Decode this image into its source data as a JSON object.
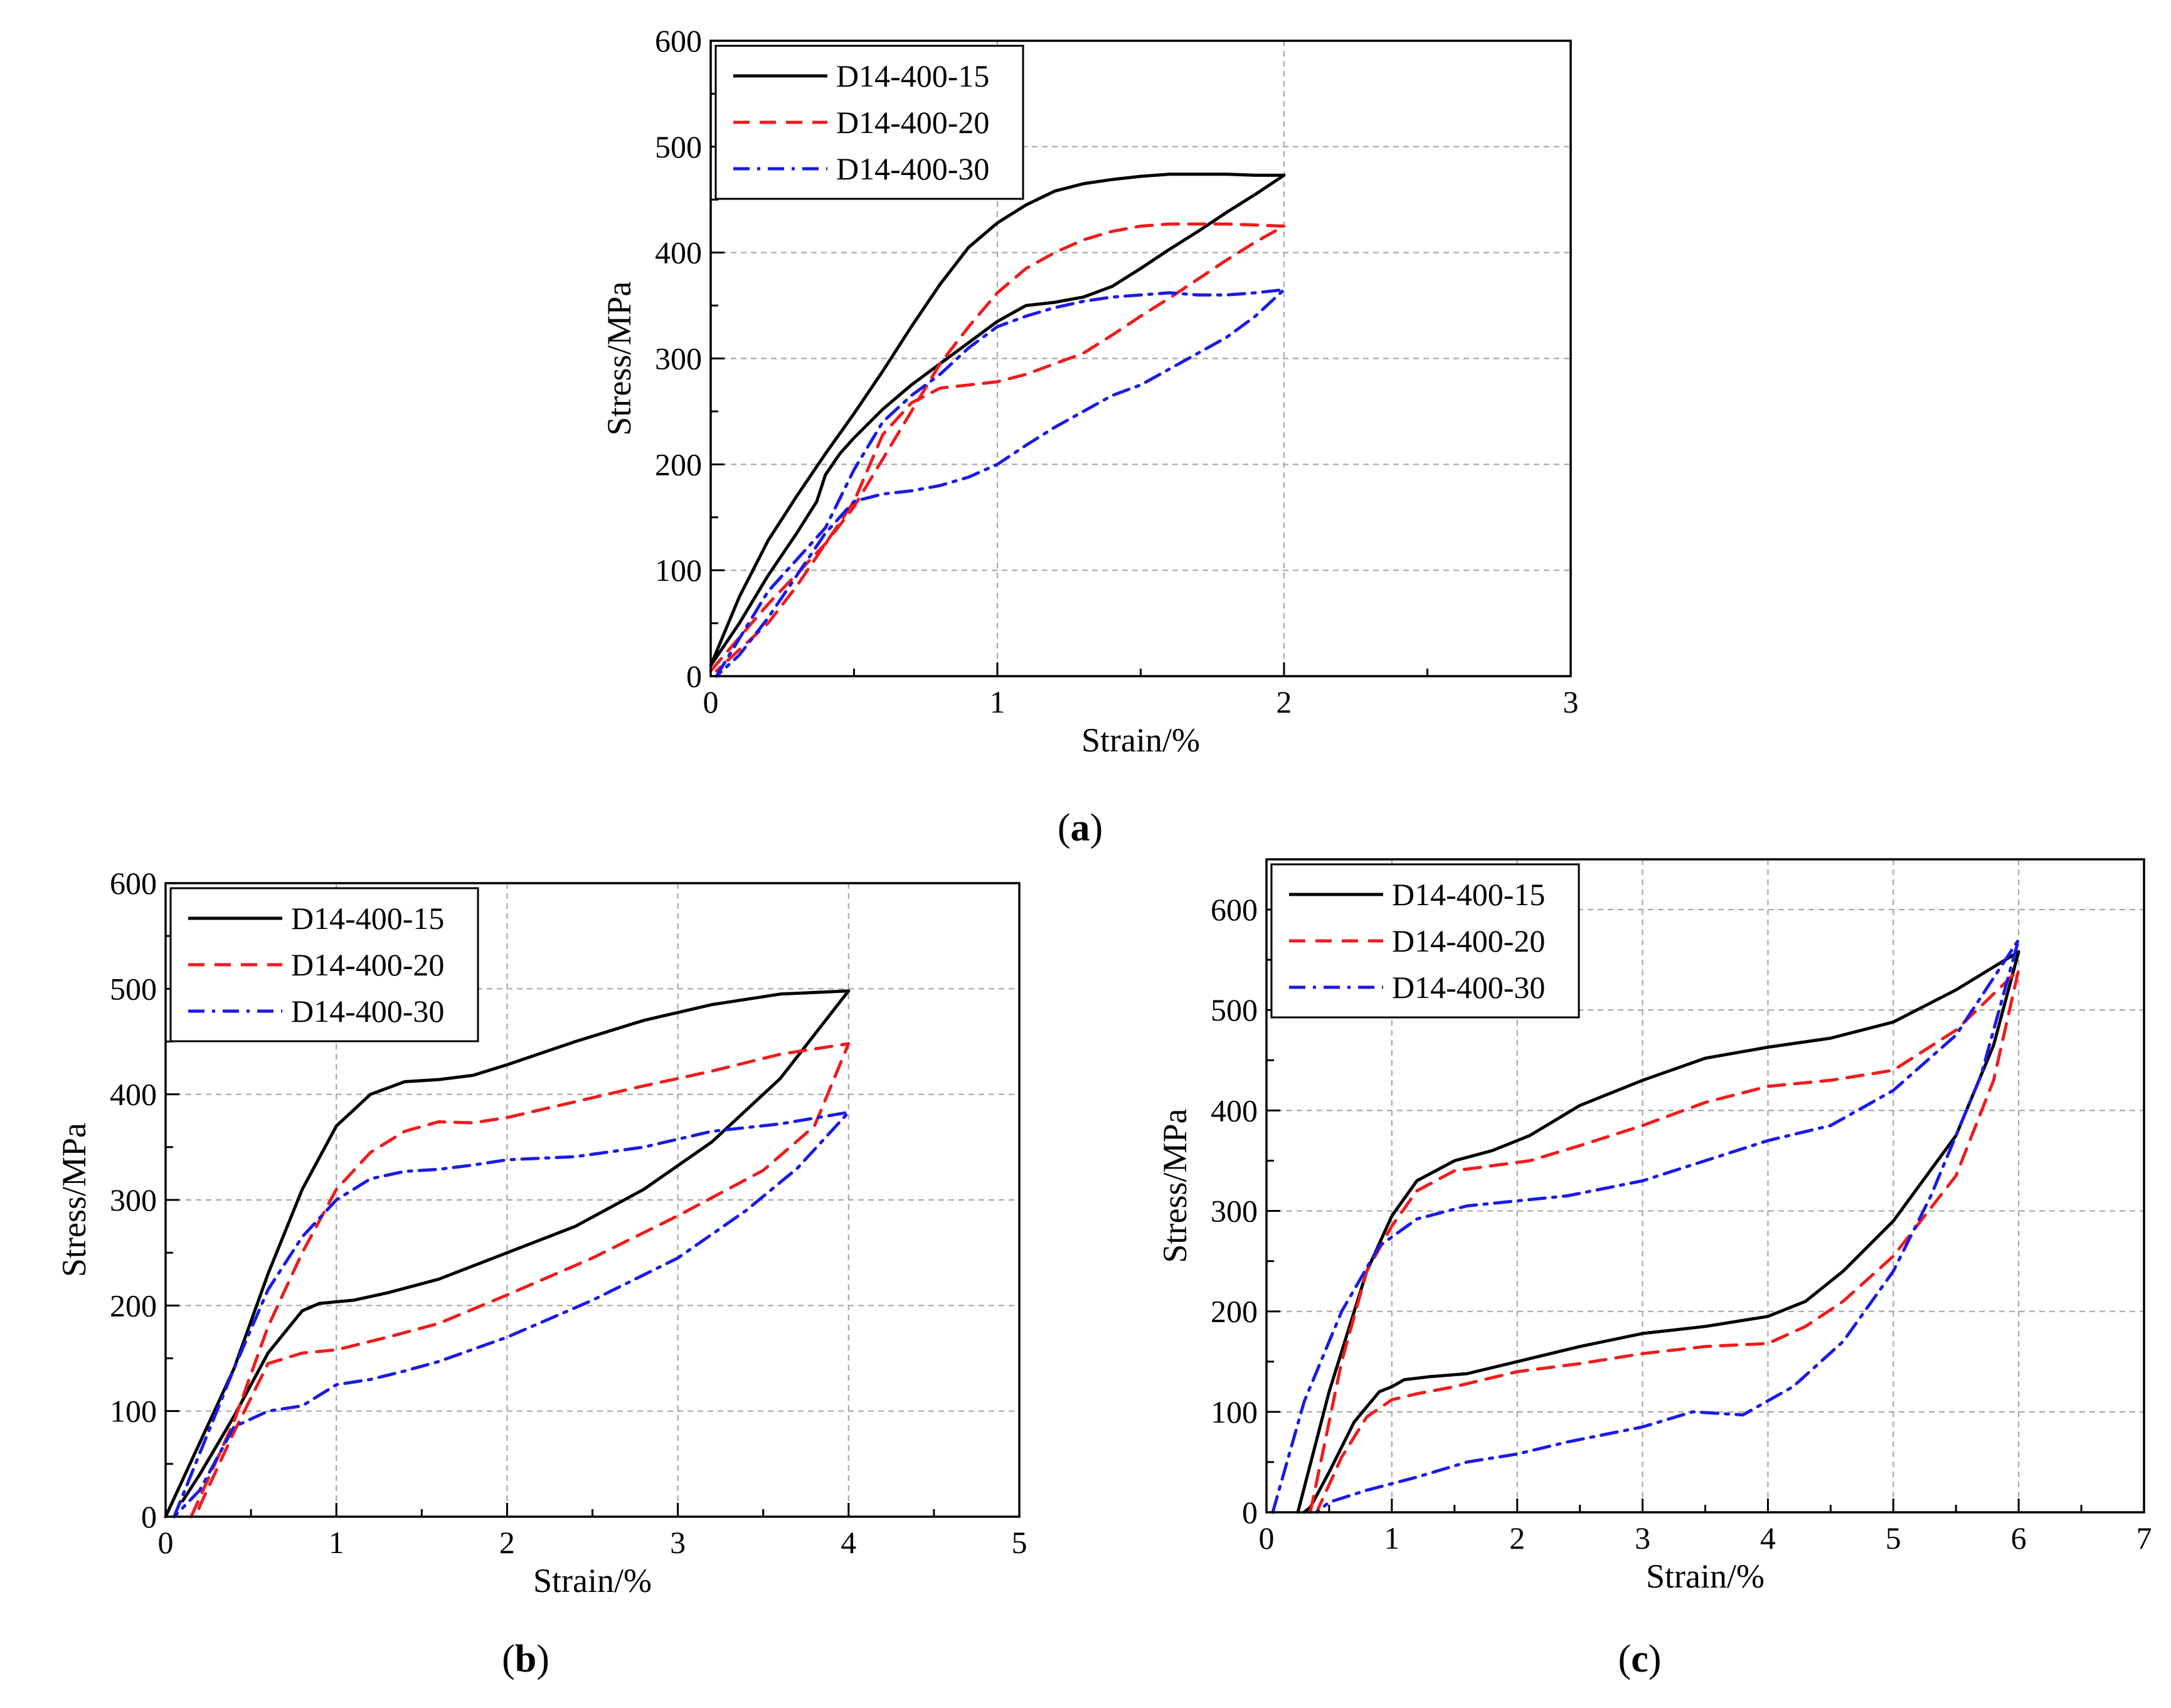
{
  "panels": [
    {
      "caption_letter": "a"
    },
    {
      "caption_letter": "b"
    },
    {
      "caption_letter": "c"
    }
  ],
  "colors": {
    "D14-400-15": "#000000",
    "D14-400-20": "#ee1c1c",
    "D14-400-30": "#1a1ae6"
  },
  "chart_data": [
    {
      "type": "line",
      "xlabel": "Strain/%",
      "ylabel": "Stress/MPa",
      "xlim": [
        0,
        3
      ],
      "ylim": [
        0,
        600
      ],
      "xticks": [
        0,
        1,
        2,
        3
      ],
      "yticks": [
        0,
        100,
        200,
        300,
        400,
        500,
        600
      ],
      "grid": true,
      "legend": "top-left",
      "series": [
        {
          "name": "D14-400-15",
          "style": "solid",
          "x": [
            0,
            0.1,
            0.2,
            0.3,
            0.4,
            0.5,
            0.6,
            0.7,
            0.8,
            0.9,
            1.0,
            1.1,
            1.2,
            1.3,
            1.4,
            1.5,
            1.6,
            1.7,
            1.8,
            1.9,
            2.0,
            1.9,
            1.8,
            1.7,
            1.6,
            1.5,
            1.4,
            1.3,
            1.2,
            1.1,
            1.0,
            0.9,
            0.8,
            0.7,
            0.6,
            0.5,
            0.45,
            0.4,
            0.37,
            0.3,
            0.2,
            0.1,
            0
          ],
          "y": [
            10,
            75,
            128,
            170,
            210,
            248,
            288,
            330,
            370,
            405,
            428,
            445,
            458,
            465,
            469,
            472,
            474,
            474,
            474,
            473,
            473,
            455,
            438,
            420,
            403,
            385,
            368,
            358,
            353,
            350,
            335,
            315,
            295,
            275,
            252,
            225,
            210,
            190,
            165,
            135,
            95,
            50,
            10
          ]
        },
        {
          "name": "D14-400-20",
          "style": "dashed",
          "x": [
            0,
            0.2,
            0.4,
            0.5,
            0.6,
            0.7,
            0.8,
            0.9,
            1.0,
            1.1,
            1.2,
            1.3,
            1.4,
            1.5,
            1.6,
            1.7,
            1.8,
            1.9,
            2.0,
            1.9,
            1.8,
            1.7,
            1.6,
            1.5,
            1.4,
            1.3,
            1.2,
            1.1,
            1.0,
            0.9,
            0.8,
            0.7,
            0.6,
            0.5,
            0.4,
            0.3,
            0.2,
            0.1,
            0.02
          ],
          "y": [
            5,
            68,
            125,
            160,
            205,
            250,
            295,
            330,
            362,
            385,
            400,
            412,
            420,
            425,
            427,
            427,
            427,
            426,
            425,
            410,
            393,
            375,
            357,
            340,
            322,
            305,
            295,
            285,
            278,
            275,
            272,
            258,
            228,
            165,
            125,
            85,
            50,
            25,
            5
          ]
        },
        {
          "name": "D14-400-30",
          "style": "dashdot",
          "x": [
            0.02,
            0.2,
            0.4,
            0.5,
            0.6,
            0.7,
            0.8,
            0.9,
            1.0,
            1.1,
            1.2,
            1.3,
            1.4,
            1.5,
            1.6,
            1.7,
            1.8,
            1.9,
            2.0,
            1.9,
            1.8,
            1.7,
            1.6,
            1.5,
            1.4,
            1.3,
            1.2,
            1.1,
            1.0,
            0.9,
            0.8,
            0.7,
            0.6,
            0.5,
            0.4,
            0.3,
            0.2,
            0.1,
            0.02
          ],
          "y": [
            0,
            80,
            140,
            195,
            240,
            265,
            285,
            310,
            330,
            340,
            348,
            354,
            358,
            360,
            362,
            360,
            360,
            362,
            365,
            340,
            320,
            305,
            290,
            275,
            265,
            250,
            235,
            218,
            200,
            188,
            180,
            175,
            172,
            165,
            135,
            95,
            55,
            20,
            0
          ]
        }
      ]
    },
    {
      "type": "line",
      "xlabel": "Strain/%",
      "ylabel": "Stress/MPa",
      "xlim": [
        0,
        5
      ],
      "ylim": [
        0,
        600
      ],
      "xticks": [
        0,
        1,
        2,
        3,
        4,
        5
      ],
      "yticks": [
        0,
        100,
        200,
        300,
        400,
        500,
        600
      ],
      "grid": true,
      "legend": "top-left",
      "series": [
        {
          "name": "D14-400-15",
          "style": "solid",
          "x": [
            0,
            0.2,
            0.4,
            0.6,
            0.8,
            1.0,
            1.2,
            1.4,
            1.6,
            1.8,
            2.0,
            2.4,
            2.8,
            3.2,
            3.6,
            4.0,
            3.6,
            3.2,
            2.8,
            2.4,
            2.0,
            1.6,
            1.3,
            1.1,
            0.9,
            0.8,
            0.6,
            0.4,
            0.2,
            0.1
          ],
          "y": [
            0,
            70,
            140,
            230,
            310,
            370,
            400,
            412,
            414,
            418,
            428,
            450,
            470,
            485,
            495,
            498,
            415,
            355,
            310,
            275,
            250,
            225,
            212,
            205,
            202,
            195,
            155,
            95,
            40,
            15
          ]
        },
        {
          "name": "D14-400-20",
          "style": "dashed",
          "x": [
            0.15,
            0.4,
            0.6,
            0.8,
            1.0,
            1.2,
            1.4,
            1.6,
            1.8,
            2.0,
            2.4,
            2.8,
            3.2,
            3.6,
            4.0,
            3.8,
            3.5,
            3.0,
            2.5,
            2.0,
            1.6,
            1.3,
            1.0,
            0.8,
            0.6,
            0.4,
            0.2,
            0.18
          ],
          "y": [
            0,
            90,
            180,
            250,
            310,
            345,
            365,
            374,
            373,
            378,
            393,
            408,
            422,
            438,
            448,
            370,
            328,
            285,
            245,
            210,
            183,
            170,
            158,
            155,
            145,
            80,
            10,
            0
          ]
        },
        {
          "name": "D14-400-30",
          "style": "dashdot",
          "x": [
            0.05,
            0.2,
            0.4,
            0.6,
            0.8,
            1.0,
            1.2,
            1.4,
            1.6,
            1.8,
            2.0,
            2.4,
            2.8,
            3.2,
            3.6,
            4.0,
            3.7,
            3.4,
            3.0,
            2.5,
            2.0,
            1.6,
            1.4,
            1.2,
            1.0,
            0.8,
            0.6,
            0.4,
            0.2,
            0.05
          ],
          "y": [
            0,
            60,
            140,
            215,
            265,
            300,
            320,
            327,
            329,
            333,
            338,
            341,
            350,
            365,
            372,
            383,
            330,
            290,
            245,
            205,
            170,
            147,
            138,
            130,
            125,
            105,
            100,
            85,
            25,
            0
          ]
        }
      ]
    },
    {
      "type": "line",
      "xlabel": "Strain/%",
      "ylabel": "Stress/MPa",
      "xlim": [
        0,
        7
      ],
      "ylim": [
        0,
        650
      ],
      "xticks": [
        0,
        1,
        2,
        3,
        4,
        5,
        6,
        7
      ],
      "yticks": [
        0,
        100,
        200,
        300,
        400,
        500,
        600
      ],
      "grid": true,
      "legend": "top-left",
      "series": [
        {
          "name": "D14-400-15",
          "style": "solid",
          "x": [
            0.25,
            0.5,
            0.8,
            1.0,
            1.2,
            1.5,
            1.8,
            2.1,
            2.5,
            3.0,
            3.5,
            4.0,
            4.5,
            5.0,
            5.5,
            6.0,
            5.8,
            5.5,
            5.0,
            4.6,
            4.3,
            4.0,
            3.5,
            3.0,
            2.5,
            2.0,
            1.6,
            1.3,
            1.1,
            1.0,
            0.9,
            0.7,
            0.5,
            0.35,
            0.3
          ],
          "y": [
            0,
            120,
            240,
            295,
            330,
            350,
            360,
            375,
            405,
            430,
            452,
            463,
            472,
            488,
            520,
            558,
            465,
            375,
            290,
            240,
            210,
            195,
            185,
            178,
            165,
            150,
            138,
            135,
            132,
            125,
            120,
            90,
            40,
            5,
            0
          ]
        },
        {
          "name": "D14-400-20",
          "style": "dashed",
          "x": [
            0.35,
            0.6,
            0.8,
            1.0,
            1.2,
            1.5,
            1.8,
            2.1,
            2.5,
            3.0,
            3.5,
            4.0,
            4.5,
            5.0,
            5.5,
            6.0,
            5.8,
            5.5,
            5.0,
            4.6,
            4.3,
            4.0,
            3.5,
            3.0,
            2.5,
            2.0,
            1.5,
            1.2,
            1.0,
            0.8,
            0.6,
            0.4
          ],
          "y": [
            0,
            150,
            240,
            285,
            320,
            340,
            345,
            350,
            365,
            385,
            408,
            424,
            430,
            440,
            480,
            540,
            430,
            335,
            255,
            210,
            185,
            168,
            165,
            158,
            148,
            140,
            125,
            118,
            112,
            95,
            55,
            0
          ]
        },
        {
          "name": "D14-400-30",
          "style": "dashdot",
          "x": [
            0.05,
            0.3,
            0.6,
            0.9,
            1.2,
            1.6,
            2.0,
            2.4,
            3.0,
            3.5,
            4.0,
            4.5,
            5.0,
            5.5,
            6.0,
            5.7,
            5.3,
            5.0,
            4.6,
            4.2,
            3.8,
            3.4,
            3.0,
            2.4,
            2.0,
            1.6,
            1.2,
            0.8,
            0.5,
            0.4
          ],
          "y": [
            0,
            110,
            200,
            265,
            292,
            305,
            310,
            315,
            330,
            350,
            370,
            385,
            420,
            475,
            570,
            435,
            315,
            240,
            170,
            125,
            97,
            100,
            85,
            70,
            58,
            50,
            35,
            22,
            10,
            0
          ]
        }
      ]
    }
  ]
}
